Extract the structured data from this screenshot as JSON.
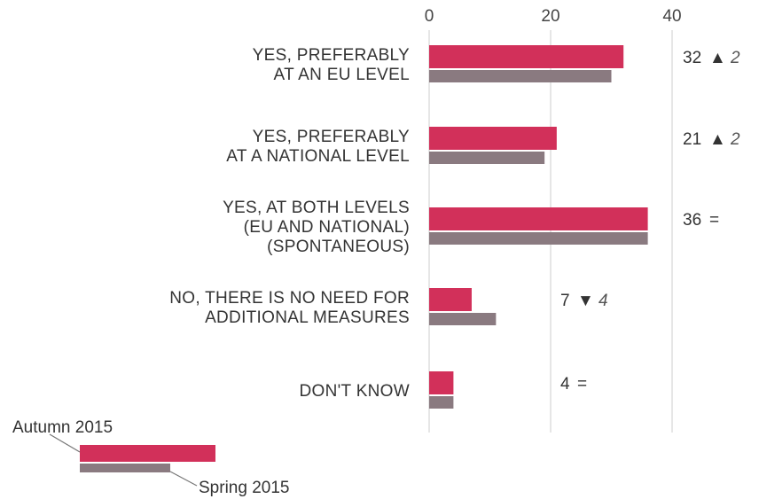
{
  "chart_data": {
    "type": "bar",
    "orientation": "horizontal",
    "xlim": [
      0,
      40
    ],
    "x_ticks": [
      "0",
      "20",
      "40"
    ],
    "grid": true,
    "categories": [
      [
        "YES, PREFERABLY",
        "AT AN EU LEVEL"
      ],
      [
        "YES, PREFERABLY",
        "AT A NATIONAL LEVEL"
      ],
      [
        "YES, AT BOTH LEVELS",
        "(EU AND NATIONAL)",
        "(SPONTANEOUS)"
      ],
      [
        "NO, THERE IS NO NEED FOR",
        "ADDITIONAL MEASURES"
      ],
      [
        "DON'T KNOW"
      ]
    ],
    "series": [
      {
        "name": "Autumn 2015",
        "color": "#d2305a",
        "values": [
          32,
          21,
          36,
          7,
          4
        ]
      },
      {
        "name": "Spring 2015",
        "color": "#8a7a80",
        "values": [
          30,
          19,
          36,
          11,
          4
        ]
      }
    ],
    "value_labels": [
      "32",
      "21",
      "36",
      "7",
      "4"
    ],
    "changes": [
      {
        "symbol": "▲",
        "value": "2"
      },
      {
        "symbol": "▲",
        "value": "2"
      },
      {
        "symbol": "=",
        "value": ""
      },
      {
        "symbol": "▼",
        "value": "4"
      },
      {
        "symbol": "=",
        "value": ""
      }
    ],
    "legend_position": "bottom-left"
  }
}
